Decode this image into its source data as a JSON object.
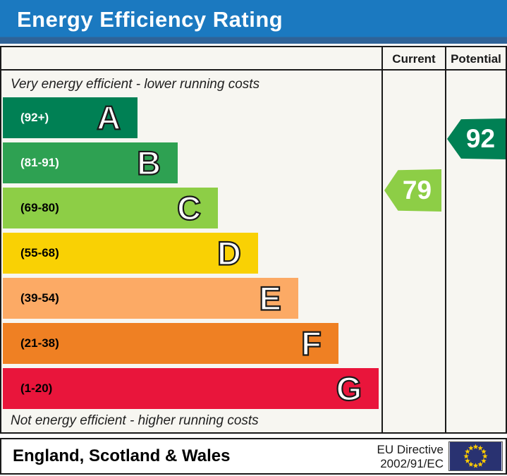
{
  "title": "Energy Efficiency Rating",
  "columns": {
    "current": "Current",
    "potential": "Potential"
  },
  "scale": {
    "top_note": "Very energy efficient - lower running costs",
    "bottom_note": "Not energy efficient - higher running costs"
  },
  "bands": [
    {
      "letter": "A",
      "range": "(92+)",
      "color": "#008054",
      "label_color": "#ffffff",
      "width_pct": 35.6
    },
    {
      "letter": "B",
      "range": "(81-91)",
      "color": "#2ea152",
      "label_color": "#ffffff",
      "width_pct": 46.2
    },
    {
      "letter": "C",
      "range": "(69-80)",
      "color": "#8dce46",
      "label_color": "#000000",
      "width_pct": 56.8
    },
    {
      "letter": "D",
      "range": "(55-68)",
      "color": "#f9d104",
      "label_color": "#000000",
      "width_pct": 67.4
    },
    {
      "letter": "E",
      "range": "(39-54)",
      "color": "#fcaa65",
      "label_color": "#000000",
      "width_pct": 78.0
    },
    {
      "letter": "F",
      "range": "(21-38)",
      "color": "#ef8023",
      "label_color": "#000000",
      "width_pct": 88.6
    },
    {
      "letter": "G",
      "range": "(1-20)",
      "color": "#e9153b",
      "label_color": "#000000",
      "width_pct": 99.3
    }
  ],
  "ratings": {
    "current": {
      "value": "79",
      "color": "#8dce46"
    },
    "potential": {
      "value": "92",
      "color": "#008054"
    }
  },
  "footer": {
    "region": "England, Scotland & Wales",
    "directive_line1": "EU Directive",
    "directive_line2": "2002/91/EC",
    "eu_flag": {
      "blue": "#293271",
      "star_yellow": "#ffcc00"
    }
  },
  "chart_data": {
    "type": "bar",
    "title": "Energy Efficiency Rating",
    "orientation": "horizontal",
    "categories": [
      "A",
      "B",
      "C",
      "D",
      "E",
      "F",
      "G"
    ],
    "band_ranges": [
      "92+",
      "81-91",
      "69-80",
      "55-68",
      "39-54",
      "21-38",
      "1-20"
    ],
    "band_colors": [
      "#008054",
      "#2ea152",
      "#8dce46",
      "#f9d104",
      "#fcaa65",
      "#ef8023",
      "#e9153b"
    ],
    "bar_relative_widths_pct": [
      35.6,
      46.2,
      56.8,
      67.4,
      78.0,
      88.6,
      99.3
    ],
    "series": [
      {
        "name": "Current",
        "value": 79,
        "band": "C"
      },
      {
        "name": "Potential",
        "value": 92,
        "band": "A"
      }
    ],
    "value_range": [
      1,
      100
    ],
    "top_annotation": "Very energy efficient - lower running costs",
    "bottom_annotation": "Not energy efficient - higher running costs",
    "region_note": "England, Scotland & Wales",
    "directive_note": "EU Directive 2002/91/EC"
  }
}
